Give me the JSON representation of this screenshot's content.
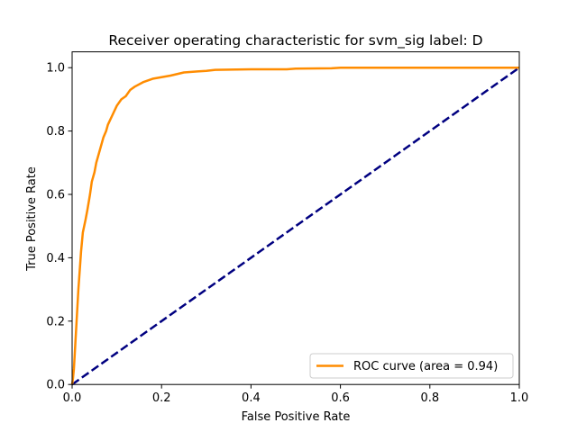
{
  "chart_data": {
    "type": "line",
    "title": "Receiver operating characteristic for svm_sig label: D",
    "xlabel": "False Positive Rate",
    "ylabel": "True Positive Rate",
    "xlim": [
      0.0,
      1.0
    ],
    "ylim": [
      0.0,
      1.05
    ],
    "x_ticks": [
      "0.0",
      "0.2",
      "0.4",
      "0.6",
      "0.8",
      "1.0"
    ],
    "y_ticks": [
      "0.0",
      "0.2",
      "0.4",
      "0.6",
      "0.8",
      "1.0"
    ],
    "x_tick_values": [
      0.0,
      0.2,
      0.4,
      0.6,
      0.8,
      1.0
    ],
    "y_tick_values": [
      0.0,
      0.2,
      0.4,
      0.6,
      0.8,
      1.0
    ],
    "grid": false,
    "legend": {
      "placement": "lower-right",
      "entries": [
        "ROC curve (area = 0.94)"
      ]
    },
    "series": [
      {
        "name": "ROC curve (area = 0.94)",
        "color": "#ff8c00",
        "style": "solid",
        "x": [
          0.0,
          0.002,
          0.004,
          0.006,
          0.008,
          0.01,
          0.012,
          0.014,
          0.016,
          0.018,
          0.02,
          0.024,
          0.03,
          0.034,
          0.04,
          0.044,
          0.05,
          0.054,
          0.06,
          0.066,
          0.07,
          0.076,
          0.08,
          0.09,
          0.1,
          0.11,
          0.12,
          0.13,
          0.14,
          0.16,
          0.18,
          0.2,
          0.22,
          0.25,
          0.28,
          0.3,
          0.32,
          0.4,
          0.48,
          0.5,
          0.58,
          0.6,
          0.8,
          1.0
        ],
        "y": [
          0.0,
          0.02,
          0.05,
          0.1,
          0.15,
          0.2,
          0.25,
          0.3,
          0.34,
          0.38,
          0.42,
          0.48,
          0.52,
          0.55,
          0.6,
          0.64,
          0.67,
          0.7,
          0.73,
          0.76,
          0.78,
          0.8,
          0.82,
          0.85,
          0.88,
          0.9,
          0.91,
          0.93,
          0.94,
          0.955,
          0.965,
          0.97,
          0.975,
          0.985,
          0.988,
          0.99,
          0.993,
          0.995,
          0.995,
          0.997,
          0.998,
          1.0,
          1.0,
          1.0
        ]
      },
      {
        "name": "",
        "color": "#000080",
        "style": "dashed",
        "x": [
          0.0,
          1.0
        ],
        "y": [
          0.0,
          1.0
        ]
      }
    ]
  }
}
